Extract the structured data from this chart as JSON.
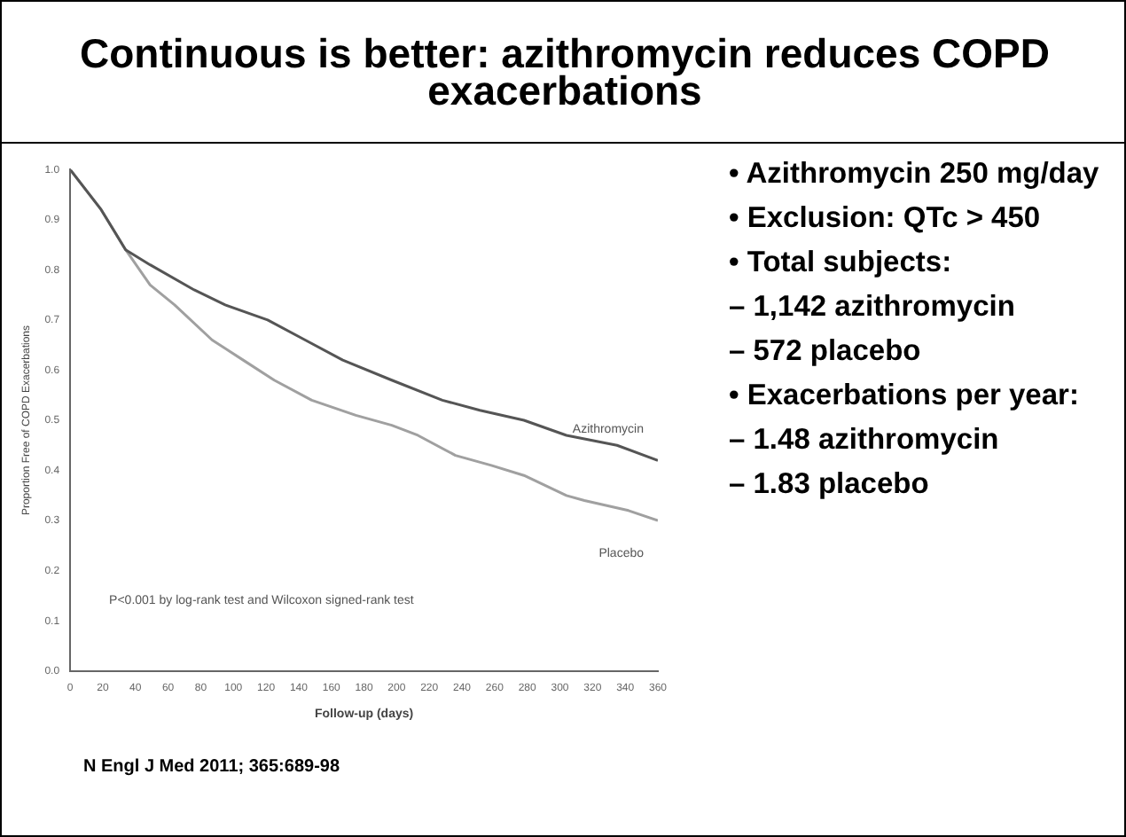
{
  "chart_data": [
    {
      "type": "line",
      "title": "Continuous is better: azithromycin reduces COPD exacerbations",
      "xlabel": "Follow-up (days)",
      "ylabel": "Proportion Free of COPD Exacerbations",
      "xlim": [
        0,
        360
      ],
      "xticks": [
        0,
        20,
        40,
        60,
        80,
        100,
        120,
        140,
        160,
        180,
        200,
        220,
        240,
        260,
        280,
        300,
        320,
        340,
        360
      ],
      "ylim": [
        0,
        1
      ],
      "yticks": [
        {
          "value": 0,
          "label": "0.0"
        },
        0.1,
        0.2,
        0.3,
        0.4,
        0.5,
        0.6,
        0.7,
        0.8,
        0.9,
        {
          "value": 1,
          "label": "1.0"
        }
      ],
      "grid": false,
      "legend": false,
      "marker": "none",
      "line_style": "solid",
      "annotations": [
        "P<0.001 by log-rank test and Wilcoxon signed-rank test",
        "N Engl J Med 2011; 365:689-98"
      ],
      "series": [
        {
          "name": "Azithromycin",
          "color": "#555555",
          "x": [
            0,
            19,
            34,
            49,
            76,
            95,
            121,
            144,
            167,
            197,
            228,
            251,
            278,
            304,
            335,
            360
          ],
          "values": [
            1.0,
            0.92,
            0.84,
            0.81,
            0.76,
            0.73,
            0.7,
            0.66,
            0.62,
            0.58,
            0.54,
            0.52,
            0.5,
            0.47,
            0.45,
            0.42
          ]
        },
        {
          "name": "Placebo",
          "color": "#a0a0a0",
          "x": [
            0,
            19,
            34,
            49,
            64,
            87,
            106,
            125,
            148,
            175,
            197,
            213,
            236,
            258,
            278,
            304,
            315,
            342,
            360
          ],
          "values": [
            1.0,
            0.92,
            0.84,
            0.77,
            0.73,
            0.66,
            0.62,
            0.58,
            0.54,
            0.51,
            0.49,
            0.47,
            0.43,
            0.41,
            0.39,
            0.35,
            0.34,
            0.32,
            0.3
          ]
        }
      ]
    },
    {
      "type": "other",
      "annotations": [
        "• Azithromycin 250 mg/day",
        "• Exclusion: QTc > 450",
        "• Total subjects:",
        "– 1,142 azithromycin",
        "– 572 placebo",
        "• Exacerbations per year:",
        "– 1.48 azithromycin",
        "– 1.83 placebo"
      ]
    }
  ]
}
